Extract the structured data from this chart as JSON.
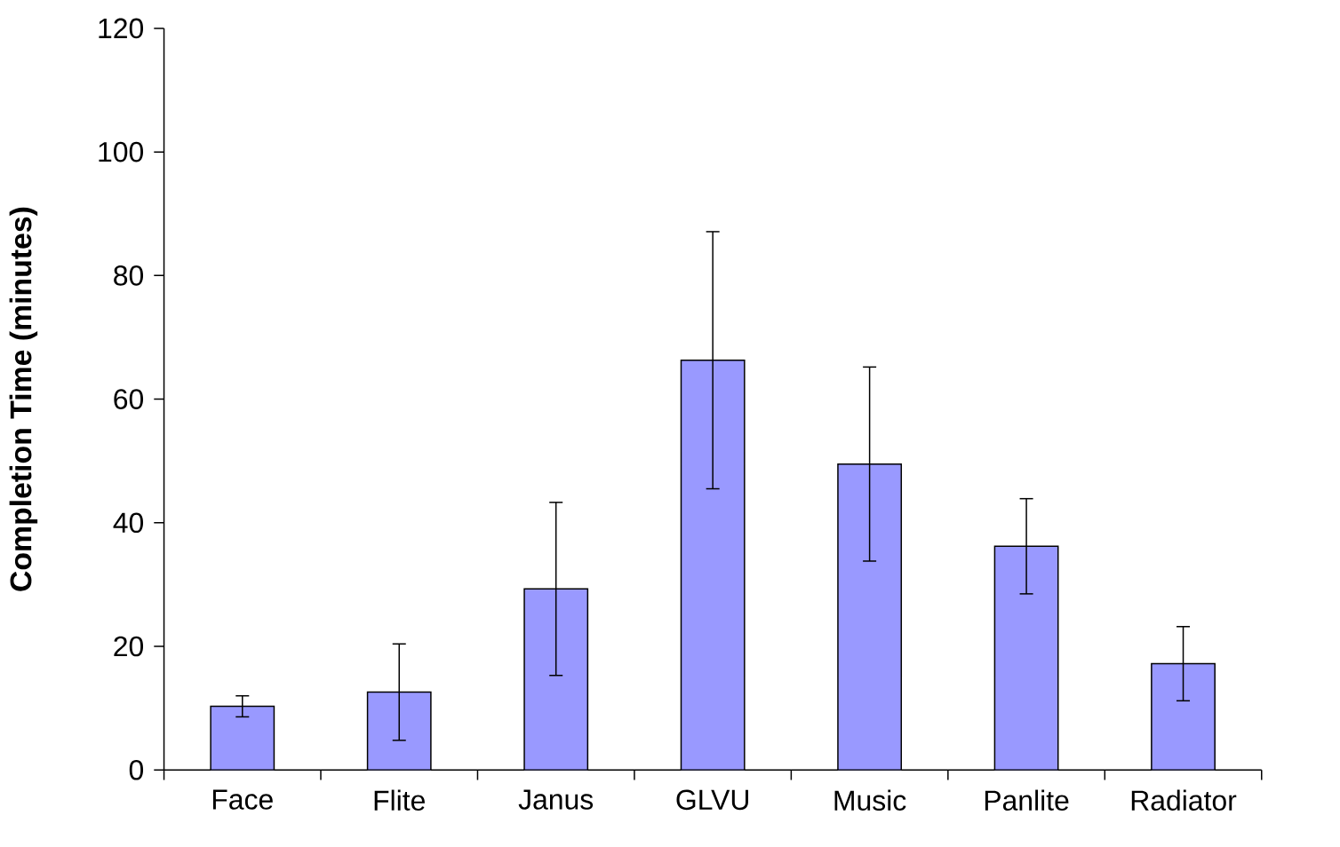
{
  "chart_data": {
    "type": "bar",
    "ylabel": "Completion Time (minutes)",
    "categories": [
      "Face",
      "Flite",
      "Janus",
      "GLVU",
      "Music",
      "Panlite",
      "Radiator"
    ],
    "values": [
      10.3,
      12.6,
      29.3,
      66.3,
      49.5,
      36.2,
      17.2
    ],
    "errors": [
      1.7,
      7.8,
      14,
      20.8,
      15.7,
      7.7,
      6
    ],
    "color": "#9999ff",
    "ylim": [
      0,
      120
    ],
    "yticks": [
      0,
      20,
      40,
      60,
      80,
      100,
      120
    ],
    "grid": false
  }
}
